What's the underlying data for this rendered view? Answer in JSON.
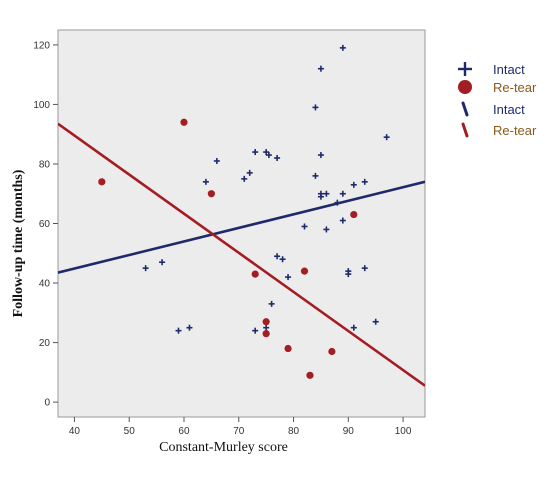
{
  "chart_data": {
    "type": "scatter",
    "title": "",
    "xlabel": "Constant-Murley score",
    "ylabel": "Follow-up time (months)",
    "xlim": [
      37,
      104
    ],
    "ylim": [
      -5,
      125
    ],
    "xticks": [
      "40",
      "50",
      "60",
      "70",
      "80",
      "90",
      "100"
    ],
    "yticks": [
      "0",
      "20",
      "40",
      "60",
      "80",
      "100",
      "120"
    ],
    "grid": false,
    "legend_position": "right",
    "series": [
      {
        "name": "Intact",
        "marker": "plus",
        "color": "#1f2a6b",
        "points": [
          [
            53,
            45
          ],
          [
            56,
            47
          ],
          [
            59,
            24
          ],
          [
            61,
            25
          ],
          [
            64,
            74
          ],
          [
            66,
            81
          ],
          [
            71,
            75
          ],
          [
            72,
            77
          ],
          [
            73,
            84
          ],
          [
            73,
            24
          ],
          [
            75,
            25
          ],
          [
            75,
            84
          ],
          [
            75.5,
            83
          ],
          [
            76,
            33
          ],
          [
            77,
            82
          ],
          [
            77,
            49
          ],
          [
            78,
            48
          ],
          [
            79,
            42
          ],
          [
            82,
            59
          ],
          [
            84,
            76
          ],
          [
            84,
            99
          ],
          [
            85,
            112
          ],
          [
            85,
            83
          ],
          [
            85,
            69
          ],
          [
            85,
            70
          ],
          [
            86,
            70
          ],
          [
            86,
            58
          ],
          [
            88,
            67
          ],
          [
            89,
            119
          ],
          [
            89,
            61
          ],
          [
            89,
            70
          ],
          [
            90,
            44
          ],
          [
            90,
            43
          ],
          [
            91,
            73
          ],
          [
            91,
            25
          ],
          [
            93,
            74
          ],
          [
            93,
            45
          ],
          [
            95,
            27
          ],
          [
            97,
            89
          ]
        ]
      },
      {
        "name": "Re-tear",
        "marker": "circle",
        "color": "#a31e22",
        "points": [
          [
            45,
            74
          ],
          [
            60,
            94
          ],
          [
            65,
            70
          ],
          [
            73,
            43
          ],
          [
            75,
            27
          ],
          [
            75,
            23
          ],
          [
            79,
            18
          ],
          [
            82,
            44
          ],
          [
            83,
            9
          ],
          [
            87,
            17
          ],
          [
            91,
            63
          ]
        ]
      }
    ],
    "fit_lines": [
      {
        "name": "Intact",
        "color": "#1f2a6b",
        "x": [
          37,
          104
        ],
        "y": [
          43.5,
          74
        ]
      },
      {
        "name": "Re-tear",
        "color": "#a31e22",
        "x": [
          37,
          104
        ],
        "y": [
          93.5,
          5.5
        ]
      }
    ],
    "legend": [
      {
        "label": "Intact",
        "marker": "plus",
        "marker_color": "#1f2a6b",
        "text_color": "#1f2a6b"
      },
      {
        "label": "Re-tear",
        "marker": "circle",
        "marker_color": "#a31e22",
        "text_color": "#8b5a1a"
      },
      {
        "label": "Intact",
        "marker": "line",
        "marker_color": "#1f2a6b",
        "text_color": "#1f2a6b"
      },
      {
        "label": "Re-tear",
        "marker": "line",
        "marker_color": "#a31e22",
        "text_color": "#8b5a1a"
      }
    ]
  }
}
